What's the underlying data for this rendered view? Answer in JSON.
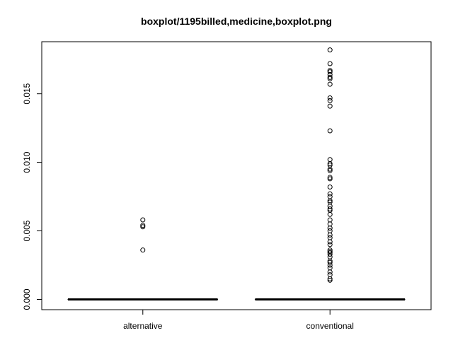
{
  "chart_data": {
    "type": "boxplot",
    "title": "boxplot/1195billed,medicine,boxplot.png",
    "xlabel": "",
    "ylabel": "",
    "categories": [
      "alternative",
      "conventional"
    ],
    "ylim": [
      -0.00075,
      0.0188
    ],
    "yticks": [
      0.0,
      0.005,
      0.01,
      0.015
    ],
    "ytick_labels": [
      "0.000",
      "0.005",
      "0.010",
      "0.015"
    ],
    "grid": false,
    "legend": "none",
    "boxes": [
      {
        "category": "alternative",
        "min": 0,
        "q1": 0,
        "median": 0,
        "q3": 0,
        "max": 0,
        "outliers": [
          0.0036,
          0.0053,
          0.0054,
          0.0058
        ]
      },
      {
        "category": "conventional",
        "min": 0,
        "q1": 0,
        "median": 0,
        "q3": 0,
        "max": 0,
        "outliers": [
          0.0014,
          0.0015,
          0.0018,
          0.002,
          0.0023,
          0.0025,
          0.0027,
          0.0028,
          0.0031,
          0.0033,
          0.0034,
          0.0035,
          0.0036,
          0.004,
          0.0042,
          0.0045,
          0.0047,
          0.005,
          0.0052,
          0.0055,
          0.0058,
          0.0062,
          0.0065,
          0.0066,
          0.0068,
          0.0071,
          0.0072,
          0.0075,
          0.0077,
          0.0082,
          0.0088,
          0.0089,
          0.0094,
          0.0095,
          0.0098,
          0.0099,
          0.0102,
          0.0123,
          0.0141,
          0.0145,
          0.0147,
          0.0157,
          0.0161,
          0.0162,
          0.0164,
          0.0166,
          0.0167,
          0.0172,
          0.0182
        ]
      }
    ],
    "colors": {
      "stroke": "#000000",
      "background": "#ffffff"
    }
  }
}
